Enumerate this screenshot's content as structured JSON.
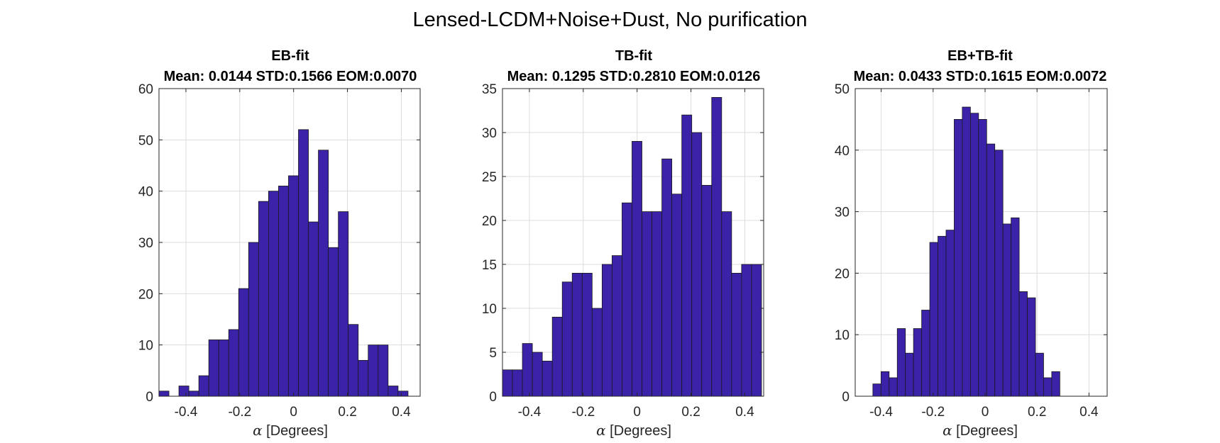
{
  "figure_title": "Lensed-LCDM+Noise+Dust, No purification",
  "style": {
    "bar_fill": "#3b22a8",
    "bar_edge": "#1a1a1a",
    "grid": "#dcdcdc",
    "axis": "#262626"
  },
  "chart_data": [
    {
      "type": "bar",
      "title": "EB-fit",
      "subtitle": "Mean: 0.0144 STD:0.1566 EOM:0.0070",
      "xlabel_symbol": "α",
      "xlabel": "[Degrees]",
      "ylabel": "",
      "xlim": [
        -0.5,
        0.47
      ],
      "ylim": [
        0,
        60
      ],
      "xticks": [
        -0.4,
        -0.2,
        0,
        0.2,
        0.4
      ],
      "xtick_labels": [
        "-0.4",
        "-0.2",
        "0",
        "0.2",
        "0.4"
      ],
      "yticks": [
        0,
        10,
        20,
        30,
        40,
        50,
        60
      ],
      "bin_start": -0.5,
      "bin_width": 0.037,
      "values": [
        1,
        0,
        2,
        1,
        4,
        11,
        11,
        13,
        21,
        30,
        38,
        40,
        41,
        43,
        52,
        34,
        48,
        29,
        36,
        14,
        7,
        10,
        10,
        2,
        1
      ]
    },
    {
      "type": "bar",
      "title": "TB-fit",
      "subtitle": "Mean: 0.1295 STD:0.2810 EOM:0.0126",
      "xlabel_symbol": "α",
      "xlabel": "[Degrees]",
      "ylabel": "",
      "xlim": [
        -0.5,
        0.47
      ],
      "ylim": [
        0,
        35
      ],
      "xticks": [
        -0.4,
        -0.2,
        0,
        0.2,
        0.4
      ],
      "xtick_labels": [
        "-0.4",
        "-0.2",
        "0",
        "0.2",
        "0.4"
      ],
      "yticks": [
        0,
        5,
        10,
        15,
        20,
        25,
        30,
        35
      ],
      "bin_start": -0.5,
      "bin_width": 0.037,
      "values": [
        3,
        3,
        6,
        5,
        4,
        9,
        13,
        14,
        14,
        10,
        15,
        16,
        22,
        29,
        21,
        21,
        27,
        23,
        32,
        30,
        24,
        34,
        21,
        14,
        15,
        15
      ]
    },
    {
      "type": "bar",
      "title": "EB+TB-fit",
      "subtitle": "Mean: 0.0433 STD:0.1615 EOM:0.0072",
      "xlabel_symbol": "α",
      "xlabel": "[Degrees]",
      "ylabel": "",
      "xlim": [
        -0.5,
        0.47
      ],
      "ylim": [
        0,
        50
      ],
      "xticks": [
        -0.4,
        -0.2,
        0,
        0.2,
        0.4
      ],
      "xtick_labels": [
        "-0.4",
        "-0.2",
        "0",
        "0.2",
        "0.4"
      ],
      "yticks": [
        0,
        10,
        20,
        30,
        40,
        50
      ],
      "bin_start": -0.432,
      "bin_width": 0.0313,
      "values": [
        2,
        4,
        3,
        11,
        7,
        11,
        14,
        25,
        26,
        27,
        45,
        47,
        46,
        45,
        41,
        40,
        28,
        29,
        17,
        16,
        7,
        3,
        4
      ]
    }
  ]
}
